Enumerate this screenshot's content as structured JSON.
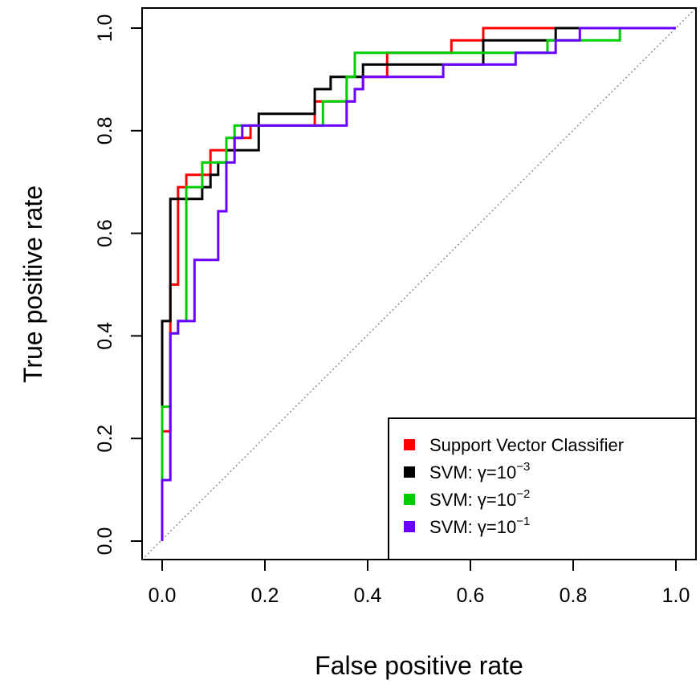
{
  "chart_data": {
    "type": "line",
    "xlabel": "False positive rate",
    "ylabel": "True positive rate",
    "xlim": [
      0,
      1
    ],
    "ylim": [
      0,
      1
    ],
    "x_ticks": [
      "0.0",
      "0.2",
      "0.4",
      "0.6",
      "0.8",
      "1.0"
    ],
    "y_ticks": [
      "0.0",
      "0.2",
      "0.4",
      "0.6",
      "0.8",
      "1.0"
    ],
    "grid": false,
    "legend_position": "bottom-right",
    "diagonal_reference": true,
    "series": [
      {
        "name": "Support Vector Classifier",
        "color": "#ff0000",
        "x": [
          0.0,
          0.0,
          0.0,
          0.016,
          0.016,
          0.031,
          0.031,
          0.047,
          0.047,
          0.094,
          0.094,
          0.141,
          0.141,
          0.172,
          0.172,
          0.297,
          0.297,
          0.313,
          0.313,
          0.359,
          0.359,
          0.375,
          0.375,
          0.391,
          0.391,
          0.438,
          0.438,
          0.563,
          0.563,
          0.625,
          0.625,
          1.0
        ],
        "y": [
          0.0,
          0.214,
          0.214,
          0.214,
          0.5,
          0.5,
          0.69,
          0.69,
          0.714,
          0.714,
          0.762,
          0.762,
          0.786,
          0.786,
          0.81,
          0.81,
          0.857,
          0.857,
          0.857,
          0.857,
          0.857,
          0.857,
          0.881,
          0.881,
          0.905,
          0.905,
          0.952,
          0.952,
          0.976,
          0.976,
          1.0,
          1.0
        ]
      },
      {
        "name": "SVM: γ=10^-3",
        "color": "#000000",
        "x": [
          0.0,
          0.0,
          0.0,
          0.0,
          0.016,
          0.016,
          0.078,
          0.078,
          0.094,
          0.094,
          0.109,
          0.109,
          0.125,
          0.125,
          0.188,
          0.188,
          0.297,
          0.297,
          0.328,
          0.328,
          0.391,
          0.391,
          0.625,
          0.625,
          0.766,
          0.766,
          1.0
        ],
        "y": [
          0.0,
          0.262,
          0.262,
          0.429,
          0.429,
          0.667,
          0.667,
          0.69,
          0.69,
          0.714,
          0.714,
          0.738,
          0.738,
          0.762,
          0.762,
          0.833,
          0.833,
          0.881,
          0.881,
          0.905,
          0.905,
          0.929,
          0.929,
          0.976,
          0.976,
          1.0,
          1.0
        ]
      },
      {
        "name": "SVM: γ=10^-2",
        "color": "#00cd00",
        "x": [
          0.0,
          0.0,
          0.0,
          0.0,
          0.016,
          0.016,
          0.031,
          0.031,
          0.047,
          0.047,
          0.078,
          0.078,
          0.125,
          0.125,
          0.141,
          0.141,
          0.313,
          0.313,
          0.359,
          0.359,
          0.375,
          0.375,
          0.75,
          0.75,
          0.891,
          0.891,
          1.0
        ],
        "y": [
          0.0,
          0.119,
          0.119,
          0.262,
          0.262,
          0.405,
          0.405,
          0.429,
          0.429,
          0.69,
          0.69,
          0.738,
          0.738,
          0.786,
          0.786,
          0.81,
          0.81,
          0.857,
          0.857,
          0.905,
          0.905,
          0.952,
          0.952,
          0.976,
          0.976,
          1.0,
          1.0
        ]
      },
      {
        "name": "SVM: γ=10^-1",
        "color": "#6a00ff",
        "x": [
          0.0,
          0.0,
          0.0,
          0.016,
          0.016,
          0.031,
          0.031,
          0.047,
          0.047,
          0.063,
          0.063,
          0.109,
          0.109,
          0.125,
          0.125,
          0.141,
          0.141,
          0.156,
          0.156,
          0.359,
          0.359,
          0.375,
          0.375,
          0.391,
          0.391,
          0.547,
          0.547,
          0.688,
          0.688,
          0.766,
          0.766,
          0.813,
          0.813,
          1.0
        ],
        "y": [
          0.0,
          0.119,
          0.119,
          0.119,
          0.405,
          0.405,
          0.429,
          0.429,
          0.429,
          0.429,
          0.548,
          0.548,
          0.643,
          0.643,
          0.738,
          0.738,
          0.786,
          0.786,
          0.81,
          0.81,
          0.857,
          0.857,
          0.881,
          0.881,
          0.905,
          0.905,
          0.929,
          0.929,
          0.952,
          0.952,
          0.976,
          0.976,
          1.0,
          1.0
        ]
      }
    ]
  },
  "legend": {
    "items": [
      {
        "label": "Support Vector Classifier",
        "prefix": "Support Vector Classifier",
        "sup": "",
        "color": "#ff0000"
      },
      {
        "label": "SVM: γ=10−3",
        "prefix": "SVM: γ=10",
        "sup": "−3",
        "color": "#000000"
      },
      {
        "label": "SVM: γ=10−2",
        "prefix": "SVM: γ=10",
        "sup": "−2",
        "color": "#00cd00"
      },
      {
        "label": "SVM: γ=10−1",
        "prefix": "SVM: γ=10",
        "sup": "−1",
        "color": "#6a00ff"
      }
    ]
  }
}
